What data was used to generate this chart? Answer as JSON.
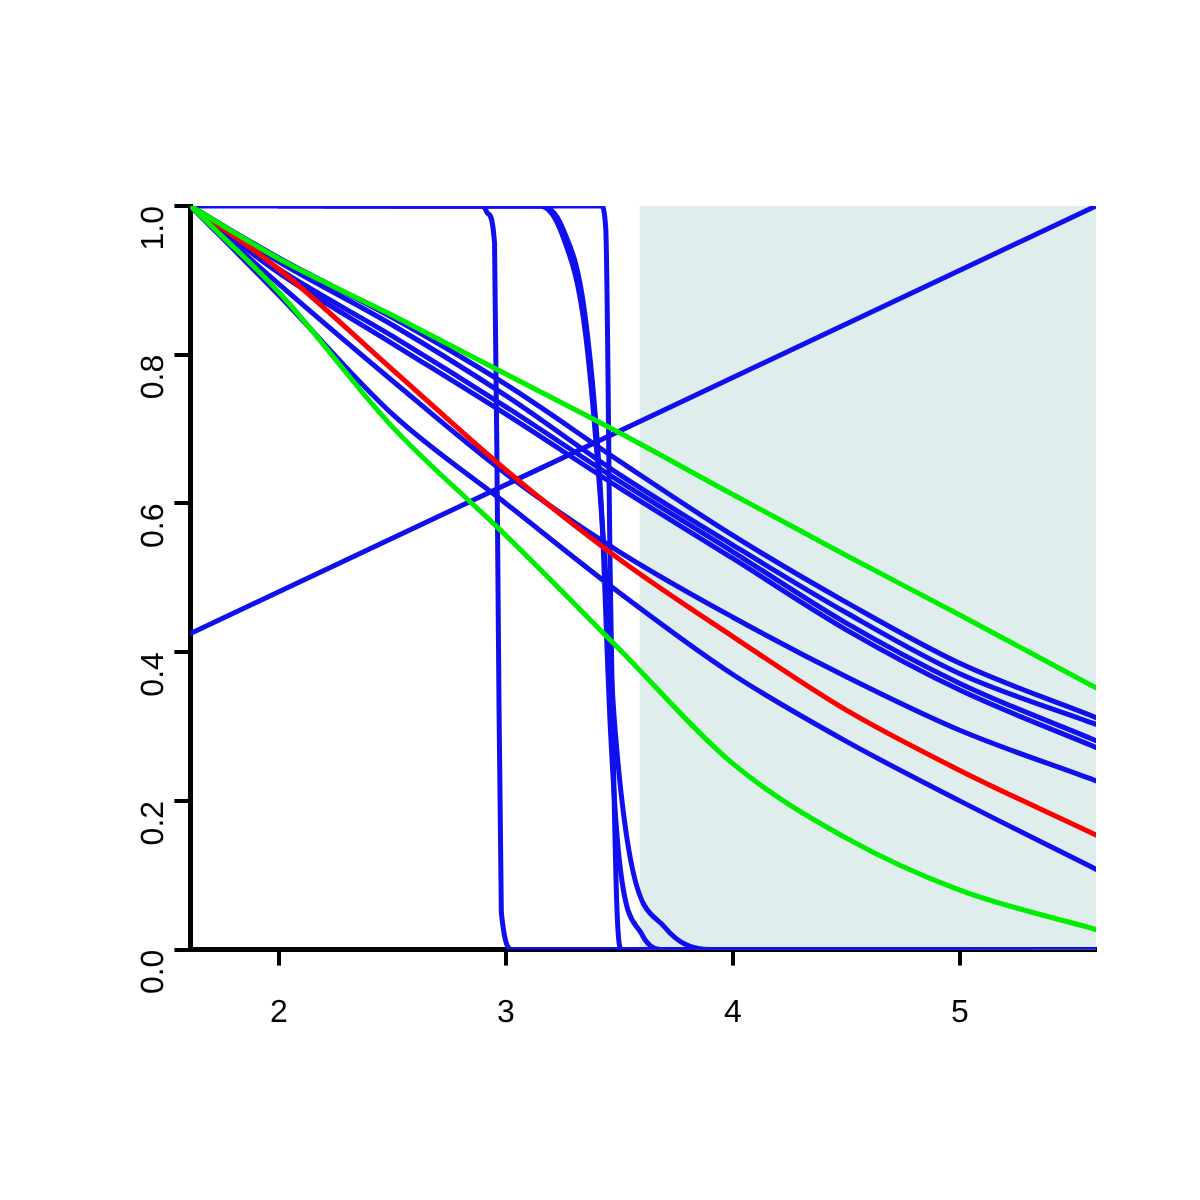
{
  "chart_data": {
    "type": "line",
    "xlim": [
      1.61,
      5.6
    ],
    "ylim": [
      0,
      1
    ],
    "xticks": [
      2,
      3,
      4,
      5
    ],
    "yticks": [
      {
        "value": 0,
        "label": "0.0"
      },
      {
        "value": 0.2,
        "label": "0.2"
      },
      {
        "value": 0.4,
        "label": "0.4"
      },
      {
        "value": 0.6,
        "label": "0.6"
      },
      {
        "value": 0.8,
        "label": "0.8"
      },
      {
        "value": 1,
        "label": "1.0"
      }
    ],
    "grid": false,
    "legend": false,
    "marker": "none",
    "line_style": "solid",
    "bands": [
      {
        "axis": "x",
        "from": 3.59,
        "to": 5.6,
        "color": "#e0eded"
      }
    ],
    "series": [
      {
        "color": "#1010ee",
        "x": [
          1.61,
          5.6
        ],
        "values": [
          0.425,
          1.0
        ]
      },
      {
        "color": "#1010ee",
        "x": [
          1.61,
          2.9,
          2.92,
          2.95,
          2.965,
          2.98,
          3.03,
          5.6
        ],
        "values": [
          1,
          1,
          0.99,
          0.95,
          0.5,
          0.05,
          0,
          0
        ]
      },
      {
        "color": "#1010ee",
        "x": [
          2.0,
          3.42,
          3.44,
          3.46,
          3.49,
          3.51,
          4.5
        ],
        "values": [
          1,
          1,
          0.97,
          0.5,
          0.05,
          0,
          0
        ]
      },
      {
        "color": "#1010ee",
        "x": [
          2.5,
          3.15,
          3.25,
          3.35,
          3.42,
          3.46,
          3.5,
          3.6,
          3.7,
          5.0
        ],
        "values": [
          1,
          1,
          0.97,
          0.85,
          0.6,
          0.3,
          0.12,
          0.02,
          0,
          0
        ]
      },
      {
        "color": "#1010ee",
        "x": [
          2.2,
          3.15,
          3.25,
          3.35,
          3.43,
          3.48,
          3.55,
          3.7,
          3.9,
          5.3
        ],
        "values": [
          1,
          1,
          0.96,
          0.83,
          0.55,
          0.3,
          0.12,
          0.03,
          0,
          0
        ]
      },
      {
        "color": "#1010ee",
        "x": [
          1.61,
          2,
          2.5,
          3,
          3.5,
          4,
          4.5,
          5,
          5.6
        ],
        "values": [
          1,
          0.93,
          0.85,
          0.76,
          0.657,
          0.557,
          0.467,
          0.385,
          0.312
        ]
      },
      {
        "color": "#1010ee",
        "x": [
          1.61,
          2,
          2.5,
          3,
          3.5,
          4,
          4.5,
          5,
          5.6
        ],
        "values": [
          1,
          0.925,
          0.84,
          0.745,
          0.639,
          0.544,
          0.453,
          0.371,
          0.303
        ]
      },
      {
        "color": "#1010ee",
        "x": [
          1.61,
          2,
          2.5,
          3,
          3.5,
          4,
          4.5,
          5,
          5.6
        ],
        "values": [
          1,
          0.915,
          0.825,
          0.73,
          0.63,
          0.535,
          0.439,
          0.358,
          0.281
        ]
      },
      {
        "color": "#1010ee",
        "x": [
          1.61,
          2,
          2.5,
          3,
          3.5,
          4,
          4.5,
          5,
          5.6
        ],
        "values": [
          1,
          0.91,
          0.815,
          0.72,
          0.621,
          0.526,
          0.43,
          0.349,
          0.272
        ]
      },
      {
        "color": "#1010ee",
        "x": [
          1.61,
          2,
          2.5,
          3,
          3.5,
          4,
          4.5,
          5,
          5.6
        ],
        "values": [
          1,
          0.895,
          0.765,
          0.64,
          0.535,
          0.447,
          0.367,
          0.295,
          0.227
        ]
      },
      {
        "color": "#1010ee",
        "x": [
          1.61,
          2,
          2.5,
          3,
          3.5,
          4,
          4.5,
          5,
          5.6
        ],
        "values": [
          1,
          0.88,
          0.72,
          0.6,
          0.48,
          0.37,
          0.28,
          0.2,
          0.108
        ]
      },
      {
        "color": "#ff0000",
        "x": [
          1.61,
          2,
          2.5,
          3,
          3.5,
          4,
          4.5,
          5,
          5.6
        ],
        "values": [
          1,
          0.915,
          0.78,
          0.645,
          0.525,
          0.421,
          0.322,
          0.241,
          0.154
        ]
      },
      {
        "color": "#00ee00",
        "x": [
          1.61,
          2,
          2.5,
          3,
          3.5,
          4,
          4.5,
          5,
          5.6
        ],
        "values": [
          1,
          0.929,
          0.853,
          0.774,
          0.695,
          0.612,
          0.53,
          0.45,
          0.352
        ]
      },
      {
        "color": "#00ee00",
        "x": [
          1.61,
          2,
          2.5,
          3,
          3.5,
          4,
          4.5,
          5,
          5.6
        ],
        "values": [
          1,
          0.884,
          0.703,
          0.557,
          0.404,
          0.25,
          0.15,
          0.08,
          0.027
        ]
      }
    ]
  }
}
